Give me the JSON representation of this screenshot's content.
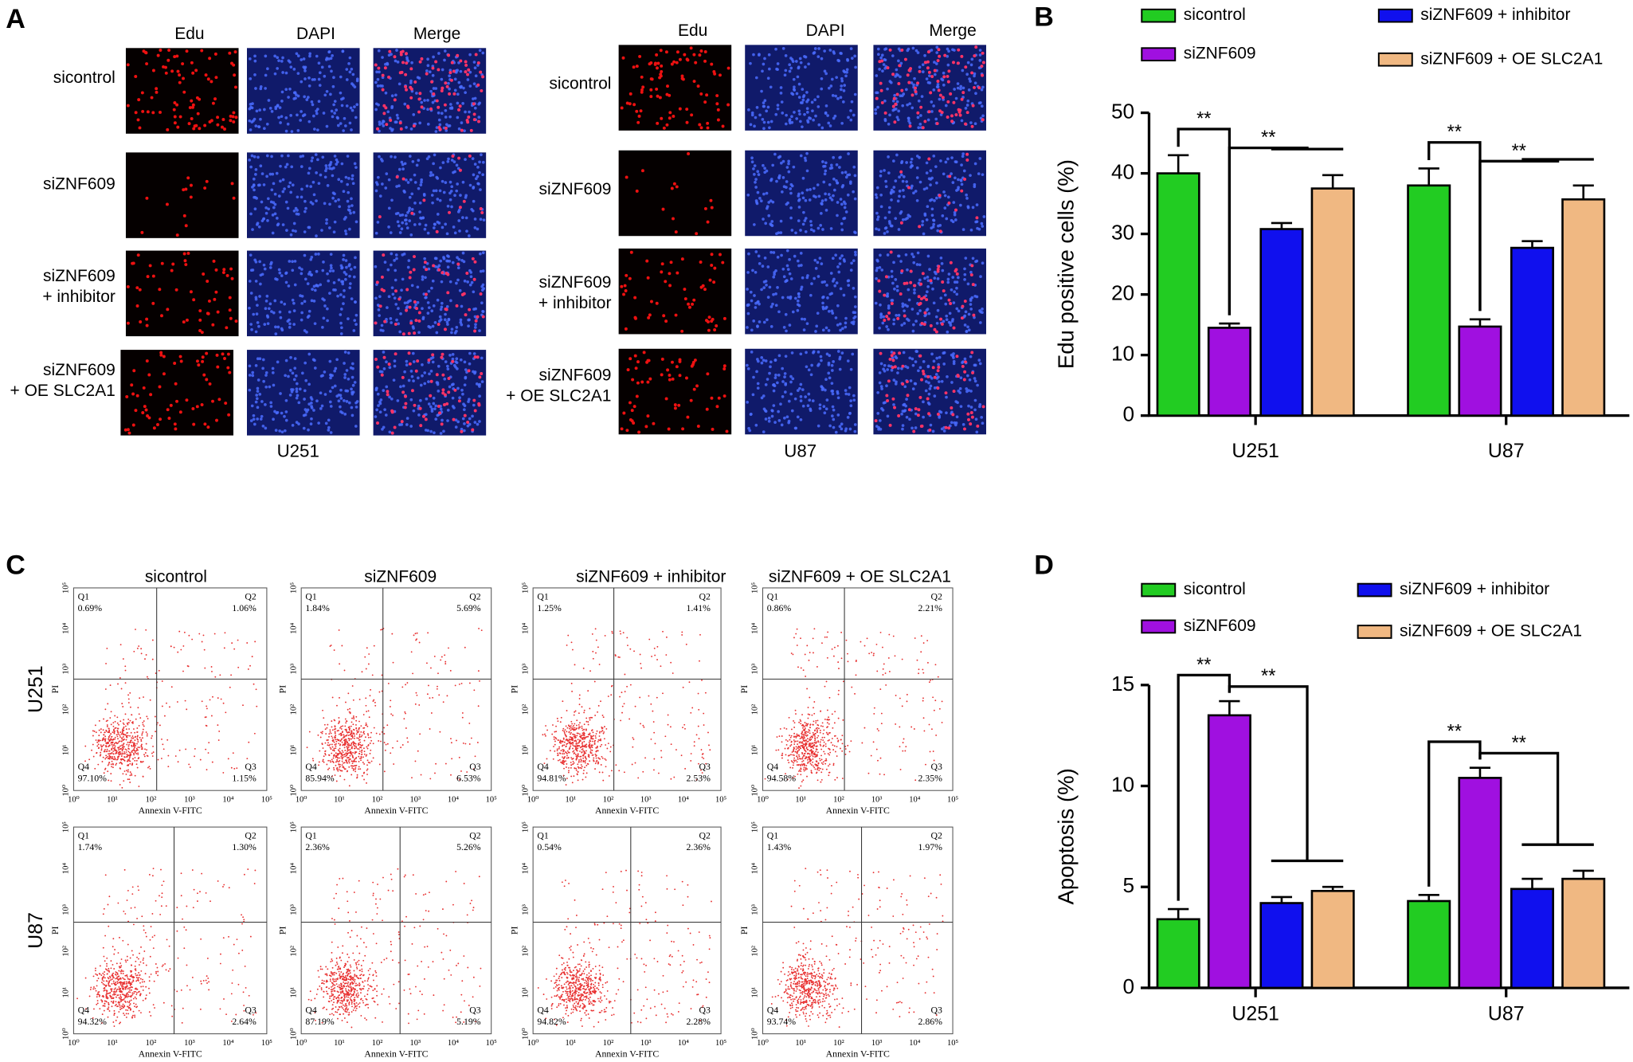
{
  "panel_a": {
    "label": "A",
    "columns": [
      "Edu",
      "DAPI",
      "Merge"
    ],
    "rows": [
      [
        "sicontrol"
      ],
      [
        "siZNF609"
      ],
      [
        "siZNF609",
        "+ inhibitor"
      ],
      [
        "siZNF609",
        "+ OE SLC2A1"
      ]
    ],
    "cell_lines": [
      "U251",
      "U87"
    ]
  },
  "panel_c": {
    "label": "C",
    "columns": [
      "sicontrol",
      "siZNF609",
      "siZNF609 + inhibitor",
      "siZNF609 + OE SLC2A1"
    ],
    "rows": [
      "U251",
      "U87"
    ],
    "quadrant_names": [
      "Q1",
      "Q2",
      "Q3",
      "Q4"
    ],
    "x_label": "Annexin V-FITC",
    "y_label": "PI",
    "ticks": [
      "10⁰",
      "10¹",
      "10²",
      "10³",
      "10⁴",
      "10⁵"
    ],
    "plots": [
      [
        [
          "0.69%",
          "1.06%",
          "1.15%",
          "97.10%"
        ],
        [
          "1.84%",
          "5.69%",
          "6.53%",
          "85.94%"
        ],
        [
          "1.25%",
          "1.41%",
          "2.53%",
          "94.81%"
        ],
        [
          "0.86%",
          "2.21%",
          "2.35%",
          "94.58%"
        ]
      ],
      [
        [
          "1.74%",
          "1.30%",
          "2.64%",
          "94.32%"
        ],
        [
          "2.36%",
          "5.26%",
          "5.19%",
          "87.19%"
        ],
        [
          "0.54%",
          "2.36%",
          "2.28%",
          "94.82%"
        ],
        [
          "1.43%",
          "1.97%",
          "2.86%",
          "93.74%"
        ]
      ]
    ]
  },
  "chart_data": [
    {
      "type": "bar",
      "panel_label": "B",
      "y_label": "Edu positive cells (%)",
      "categories": [
        "U251",
        "U87"
      ],
      "series": [
        {
          "name": "sicontrol",
          "color": "#22cc22",
          "values": [
            40,
            38
          ],
          "errors": [
            3,
            2.8
          ]
        },
        {
          "name": "siZNF609",
          "color": "#a010e0",
          "values": [
            14.5,
            14.7
          ],
          "errors": [
            0.7,
            1.2
          ]
        },
        {
          "name": "siZNF609 + inhibitor",
          "color": "#1010ee",
          "values": [
            30.8,
            27.7
          ],
          "errors": [
            1,
            1.1
          ]
        },
        {
          "name": "siZNF609 + OE SLC2A1",
          "color": "#f0b882",
          "values": [
            37.5,
            35.7
          ],
          "errors": [
            2.2,
            2.3
          ]
        }
      ],
      "ylim": [
        0,
        50
      ],
      "yticks": [
        0,
        10,
        20,
        30,
        40,
        50
      ],
      "annotations": [
        "**",
        "**",
        "**",
        "**"
      ]
    },
    {
      "type": "bar",
      "panel_label": "D",
      "y_label": "Apoptosis (%)",
      "categories": [
        "U251",
        "U87"
      ],
      "series": [
        {
          "name": "sicontrol",
          "color": "#22cc22",
          "values": [
            3.4,
            4.3
          ],
          "errors": [
            0.5,
            0.3
          ]
        },
        {
          "name": "siZNF609",
          "color": "#a010e0",
          "values": [
            13.5,
            10.4
          ],
          "errors": [
            0.7,
            0.5
          ]
        },
        {
          "name": "siZNF609 + inhibitor",
          "color": "#1010ee",
          "values": [
            4.2,
            4.9
          ],
          "errors": [
            0.3,
            0.5
          ]
        },
        {
          "name": "siZNF609 + OE SLC2A1",
          "color": "#f0b882",
          "values": [
            4.8,
            5.4
          ],
          "errors": [
            0.2,
            0.4
          ]
        }
      ],
      "ylim": [
        0,
        15
      ],
      "yticks": [
        0,
        5,
        10,
        15
      ],
      "annotations": [
        "**",
        "**",
        "**",
        "**"
      ]
    }
  ]
}
